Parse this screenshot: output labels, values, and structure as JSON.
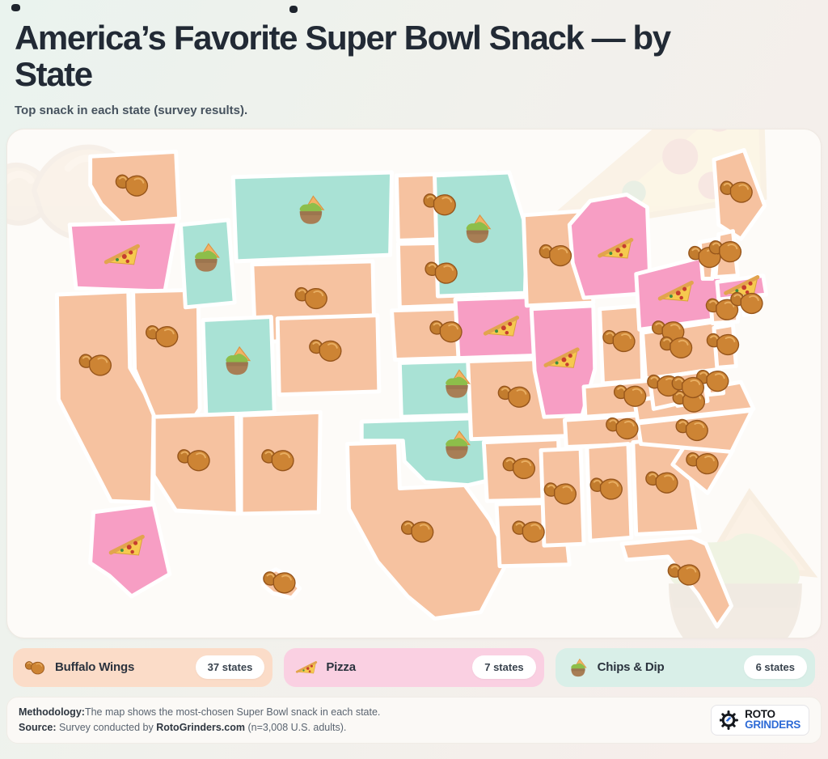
{
  "header": {
    "title": "America’s Favorite Super Bowl Snack — by State",
    "subtitle": "Top snack in each state (survey results)."
  },
  "colors": {
    "wings": "#F6C2A0",
    "pizza": "#F79EC4",
    "dip": "#A9E2D5",
    "wings_chip": "#FBDCC8",
    "pizza_chip": "#FAD0E2",
    "dip_chip": "#D9EFE8"
  },
  "legend": [
    {
      "id": "wings",
      "label": "Buffalo Wings",
      "count": "37 states",
      "icon": "wing-icon"
    },
    {
      "id": "pizza",
      "label": "Pizza",
      "count": "7 states",
      "icon": "pizza-icon"
    },
    {
      "id": "dip",
      "label": "Chips & Dip",
      "count": "6 states",
      "icon": "chips-dip-icon"
    }
  ],
  "footer": {
    "methodology_label": "Methodology:",
    "methodology_text": "The map shows the most-chosen Super Bowl snack in each state.",
    "source_label": "Source:",
    "source_prefix": " Survey conducted by ",
    "source_brand": "RotoGrinders.com",
    "source_suffix": " (n=3,008 U.S. adults).",
    "logo_top": "ROTO",
    "logo_bottom": "GRINDERS"
  },
  "map": {
    "states": [
      {
        "id": "WA",
        "name": "Washington",
        "snack": "wings"
      },
      {
        "id": "OR",
        "name": "Oregon",
        "snack": "pizza"
      },
      {
        "id": "CA",
        "name": "California",
        "snack": "wings"
      },
      {
        "id": "NV",
        "name": "Nevada",
        "snack": "wings"
      },
      {
        "id": "ID",
        "name": "Idaho",
        "snack": "dip"
      },
      {
        "id": "MT",
        "name": "Montana",
        "snack": "dip"
      },
      {
        "id": "WY",
        "name": "Wyoming",
        "snack": "wings"
      },
      {
        "id": "UT",
        "name": "Utah",
        "snack": "dip"
      },
      {
        "id": "CO",
        "name": "Colorado",
        "snack": "wings"
      },
      {
        "id": "AZ",
        "name": "Arizona",
        "snack": "wings"
      },
      {
        "id": "NM",
        "name": "New Mexico",
        "snack": "wings"
      },
      {
        "id": "ND",
        "name": "North Dakota",
        "snack": "wings"
      },
      {
        "id": "SD",
        "name": "South Dakota",
        "snack": "wings"
      },
      {
        "id": "NE",
        "name": "Nebraska",
        "snack": "wings"
      },
      {
        "id": "KS",
        "name": "Kansas",
        "snack": "dip"
      },
      {
        "id": "OK",
        "name": "Oklahoma",
        "snack": "dip"
      },
      {
        "id": "TX",
        "name": "Texas",
        "snack": "wings"
      },
      {
        "id": "MN",
        "name": "Minnesota",
        "snack": "dip"
      },
      {
        "id": "IA",
        "name": "Iowa",
        "snack": "pizza"
      },
      {
        "id": "MO",
        "name": "Missouri",
        "snack": "wings"
      },
      {
        "id": "AR",
        "name": "Arkansas",
        "snack": "wings"
      },
      {
        "id": "LA",
        "name": "Louisiana",
        "snack": "wings"
      },
      {
        "id": "WI",
        "name": "Wisconsin",
        "snack": "wings"
      },
      {
        "id": "IL",
        "name": "Illinois",
        "snack": "pizza"
      },
      {
        "id": "MI",
        "name": "Michigan",
        "snack": "pizza"
      },
      {
        "id": "IN",
        "name": "Indiana",
        "snack": "wings"
      },
      {
        "id": "OH",
        "name": "Ohio",
        "snack": "wings"
      },
      {
        "id": "KY",
        "name": "Kentucky",
        "snack": "wings"
      },
      {
        "id": "TN",
        "name": "Tennessee",
        "snack": "wings"
      },
      {
        "id": "MS",
        "name": "Mississippi",
        "snack": "wings"
      },
      {
        "id": "AL",
        "name": "Alabama",
        "snack": "wings"
      },
      {
        "id": "GA",
        "name": "Georgia",
        "snack": "wings"
      },
      {
        "id": "FL",
        "name": "Florida",
        "snack": "wings"
      },
      {
        "id": "SC",
        "name": "South Carolina",
        "snack": "wings"
      },
      {
        "id": "NC",
        "name": "North Carolina",
        "snack": "wings"
      },
      {
        "id": "VA",
        "name": "Virginia",
        "snack": "wings"
      },
      {
        "id": "WV",
        "name": "West Virginia",
        "snack": "wings"
      },
      {
        "id": "PA",
        "name": "Pennsylvania",
        "snack": "wings"
      },
      {
        "id": "NY",
        "name": "New York",
        "snack": "pizza"
      },
      {
        "id": "ME",
        "name": "Maine",
        "snack": "wings"
      },
      {
        "id": "VT",
        "name": "Vermont",
        "snack": "wings"
      },
      {
        "id": "NH",
        "name": "New Hampshire",
        "snack": "wings"
      },
      {
        "id": "MA",
        "name": "Massachusetts",
        "snack": "pizza"
      },
      {
        "id": "CT",
        "name": "Connecticut",
        "snack": "wings"
      },
      {
        "id": "RI",
        "name": "Rhode Island",
        "snack": "wings"
      },
      {
        "id": "NJ",
        "name": "New Jersey",
        "snack": "wings"
      },
      {
        "id": "DE",
        "name": "Delaware",
        "snack": "wings"
      },
      {
        "id": "MD",
        "name": "Maryland",
        "snack": "wings"
      },
      {
        "id": "AK",
        "name": "Alaska",
        "snack": "pizza"
      },
      {
        "id": "HI",
        "name": "Hawaii",
        "snack": "wings"
      }
    ]
  }
}
